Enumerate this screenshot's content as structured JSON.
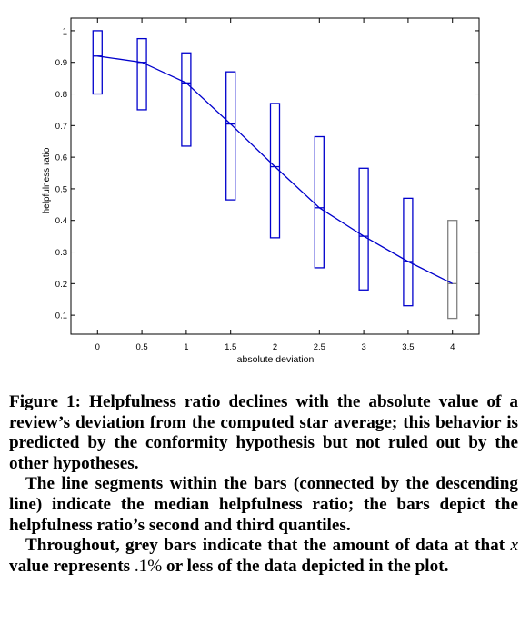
{
  "chart_data": {
    "type": "box",
    "xlabel": "absolute deviation",
    "ylabel": "helpfulness ratio",
    "xlim": [
      -0.3,
      4.3
    ],
    "ylim": [
      0.04,
      1.04
    ],
    "x_ticks": [
      0,
      0.5,
      1,
      1.5,
      2,
      2.5,
      3,
      3.5,
      4
    ],
    "x_tick_labels": [
      "0",
      "0.5",
      "1",
      "1.5",
      "2",
      "2.5",
      "3",
      "3.5",
      "4"
    ],
    "y_ticks": [
      0.1,
      0.2,
      0.3,
      0.4,
      0.5,
      0.6,
      0.7,
      0.8,
      0.9,
      1
    ],
    "y_tick_labels": [
      "0.1",
      "0.2",
      "0.3",
      "0.4",
      "0.5",
      "0.6",
      "0.7",
      "0.8",
      "0.9",
      "1"
    ],
    "grid": false,
    "box_color": "#0000cc",
    "grey_color": "#808080",
    "boxes": [
      {
        "x": 0,
        "q1": 0.8,
        "median": 0.92,
        "q3": 1.0,
        "grey": false
      },
      {
        "x": 0.5,
        "q1": 0.75,
        "median": 0.9,
        "q3": 0.975,
        "grey": false
      },
      {
        "x": 1,
        "q1": 0.635,
        "median": 0.835,
        "q3": 0.93,
        "grey": false
      },
      {
        "x": 1.5,
        "q1": 0.465,
        "median": 0.705,
        "q3": 0.87,
        "grey": false
      },
      {
        "x": 2,
        "q1": 0.345,
        "median": 0.57,
        "q3": 0.77,
        "grey": false
      },
      {
        "x": 2.5,
        "q1": 0.25,
        "median": 0.44,
        "q3": 0.665,
        "grey": false
      },
      {
        "x": 3,
        "q1": 0.18,
        "median": 0.35,
        "q3": 0.565,
        "grey": false
      },
      {
        "x": 3.5,
        "q1": 0.13,
        "median": 0.27,
        "q3": 0.47,
        "grey": false
      },
      {
        "x": 4,
        "q1": 0.09,
        "median": 0.2,
        "q3": 0.4,
        "grey": true
      }
    ],
    "median_line": {
      "x": [
        0,
        0.5,
        1,
        1.5,
        2,
        2.5,
        3,
        3.5,
        4
      ],
      "y": [
        0.92,
        0.9,
        0.835,
        0.705,
        0.57,
        0.44,
        0.35,
        0.27,
        0.2
      ]
    }
  },
  "caption": {
    "p1": "Figure 1: Helpfulness ratio declines with the absolute value of a review’s deviation from the computed star average; this behavior is predicted by the conformity hypothesis but not ruled out by the other hypotheses.",
    "p2": "The line segments within the bars (connected by the descending line) indicate the median helpfulness ratio; the bars depict the helpfulness ratio’s second and third quantiles.",
    "p3_a": "Throughout, grey bars indicate that the amount of data at that",
    "p3_var": "x",
    "p3_b": "value represents",
    "p3_pct": ".1%",
    "p3_c": "or less of the data depicted in the plot."
  }
}
